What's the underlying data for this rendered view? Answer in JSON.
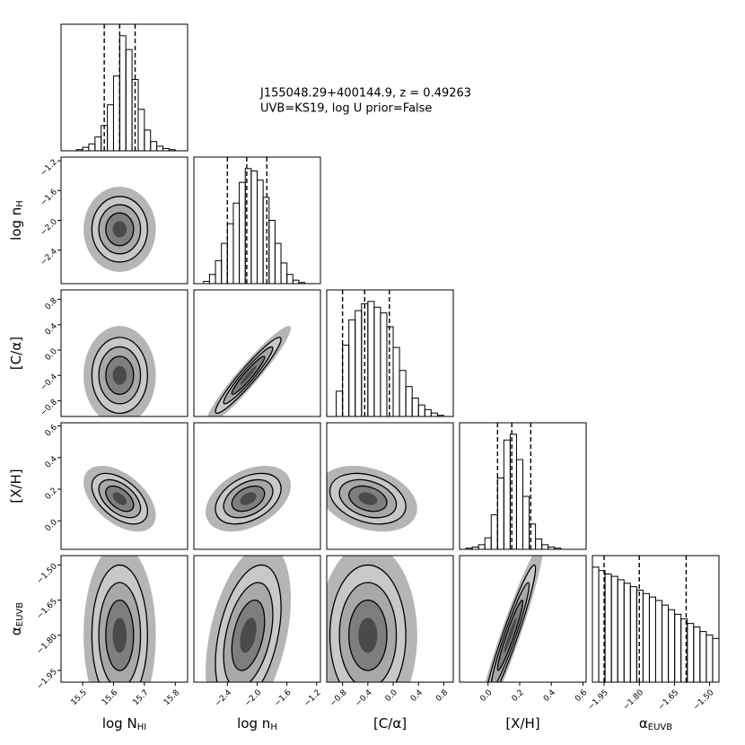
{
  "chart_data": {
    "type": "corner",
    "title": [
      "J155048.29+400144.9, z = 0.49263",
      "UVB=KS19, log U prior=False"
    ],
    "hist_ylim": [
      0,
      110
    ],
    "parameters": [
      {
        "label": {
          "text": "log N",
          "sub": "HI"
        },
        "lim": [
          15.43,
          15.84
        ],
        "ticks": [
          15.5,
          15.6,
          15.7,
          15.8
        ],
        "quantiles": [
          15.57,
          15.62,
          15.67
        ],
        "bins": [
          15.44,
          15.46,
          15.48,
          15.5,
          15.52,
          15.54,
          15.56,
          15.58,
          15.6,
          15.62,
          15.64,
          15.66,
          15.68,
          15.7,
          15.72,
          15.74,
          15.76,
          15.78,
          15.8,
          15.82,
          15.84
        ],
        "counts": [
          0,
          0,
          1,
          3,
          6,
          12,
          22,
          40,
          65,
          100,
          88,
          62,
          36,
          18,
          8,
          4,
          2,
          1,
          0,
          0
        ],
        "mean": 15.62,
        "sd": 0.045
      },
      {
        "label": {
          "text": "log n",
          "sub": "H"
        },
        "lim": [
          -2.85,
          -1.15
        ],
        "ticks": [
          {
            "value": -2.4,
            "label": "−2.4"
          },
          {
            "value": -2.0,
            "label": "−2.0"
          },
          {
            "value": -1.6,
            "label": "−1.6"
          },
          {
            "value": -1.2,
            "label": "−1.2"
          }
        ],
        "quantiles": [
          -2.4,
          -2.14,
          -1.87
        ],
        "bins": [
          -2.8,
          -2.72,
          -2.64,
          -2.56,
          -2.48,
          -2.4,
          -2.32,
          -2.24,
          -2.16,
          -2.08,
          -2.0,
          -1.92,
          -1.84,
          -1.76,
          -1.68,
          -1.6,
          -1.52,
          -1.44,
          -1.36,
          -1.28,
          -1.2
        ],
        "counts": [
          0,
          2,
          8,
          20,
          35,
          52,
          70,
          88,
          100,
          98,
          90,
          75,
          55,
          35,
          18,
          8,
          3,
          1,
          0,
          0
        ],
        "mean": -2.12,
        "sd": 0.22
      },
      {
        "label": {
          "text": "[C/α]"
        },
        "lim": [
          -1.05,
          0.95
        ],
        "ticks": [
          {
            "value": -0.8,
            "label": "−0.8"
          },
          {
            "value": -0.4,
            "label": "−0.4"
          },
          {
            "value": 0,
            "label": "0.0"
          },
          0.4,
          0.8
        ],
        "quantiles": [
          -0.8,
          -0.45,
          -0.06
        ],
        "bins": [
          -1.0,
          -0.9,
          -0.8,
          -0.7,
          -0.6,
          -0.5,
          -0.4,
          -0.3,
          -0.2,
          -0.1,
          0,
          0.1,
          0.2,
          0.3,
          0.4,
          0.5,
          0.6,
          0.7,
          0.8,
          0.9,
          1.0
        ],
        "counts": [
          0,
          22,
          62,
          84,
          92,
          98,
          100,
          95,
          90,
          78,
          60,
          40,
          26,
          16,
          10,
          6,
          3,
          1,
          0,
          0
        ],
        "mean": -0.4,
        "sd": 0.3
      },
      {
        "label": {
          "text": "[X/H]"
        },
        "lim": [
          -0.18,
          0.62
        ],
        "ticks": [
          {
            "value": 0,
            "label": "0.0"
          },
          0.2,
          0.4,
          0.6
        ],
        "quantiles": [
          0.06,
          0.15,
          0.27
        ],
        "bins": [
          -0.18,
          -0.14,
          -0.1,
          -0.06,
          -0.02,
          0.02,
          0.06,
          0.1,
          0.14,
          0.18,
          0.22,
          0.26,
          0.3,
          0.34,
          0.38,
          0.42,
          0.46,
          0.5,
          0.54,
          0.58,
          0.62
        ],
        "counts": [
          0,
          1,
          2,
          4,
          10,
          30,
          62,
          95,
          100,
          78,
          46,
          22,
          9,
          4,
          2,
          1,
          0,
          0,
          0,
          0
        ],
        "mean": 0.14,
        "sd": 0.08
      },
      {
        "label": {
          "text": "α",
          "sub": "EUVB"
        },
        "lim": [
          -2.0,
          -1.46
        ],
        "ticks": [
          {
            "value": -1.95,
            "label": "−1.95"
          },
          {
            "value": -1.8,
            "label": "−1.80"
          },
          {
            "value": -1.65,
            "label": "−1.65"
          },
          {
            "value": -1.5,
            "label": "−1.50"
          }
        ],
        "quantiles": [
          -1.95,
          -1.8,
          -1.6
        ],
        "bins": [
          -2.0,
          -1.973,
          -1.946,
          -1.919,
          -1.892,
          -1.865,
          -1.838,
          -1.811,
          -1.784,
          -1.757,
          -1.73,
          -1.703,
          -1.676,
          -1.649,
          -1.622,
          -1.595,
          -1.568,
          -1.541,
          -1.514,
          -1.487,
          -1.46
        ],
        "counts": [
          100,
          97,
          94,
          92,
          89,
          86,
          83,
          80,
          77,
          74,
          71,
          67,
          63,
          59,
          55,
          51,
          48,
          44,
          41,
          38
        ],
        "mean": -1.8,
        "sd": 0.15
      }
    ],
    "correlations": [
      {
        "x": 0,
        "y": 1,
        "rho": 0.0
      },
      {
        "x": 0,
        "y": 2,
        "rho": 0.0
      },
      {
        "x": 0,
        "y": 3,
        "rho": -0.5
      },
      {
        "x": 0,
        "y": 4,
        "rho": 0.0
      },
      {
        "x": 1,
        "y": 2,
        "rho": 0.95
      },
      {
        "x": 1,
        "y": 3,
        "rho": 0.4
      },
      {
        "x": 1,
        "y": 4,
        "rho": 0.4
      },
      {
        "x": 2,
        "y": 3,
        "rho": -0.3
      },
      {
        "x": 2,
        "y": 4,
        "rho": 0.0
      },
      {
        "x": 3,
        "y": 4,
        "rho": 0.95
      }
    ]
  }
}
